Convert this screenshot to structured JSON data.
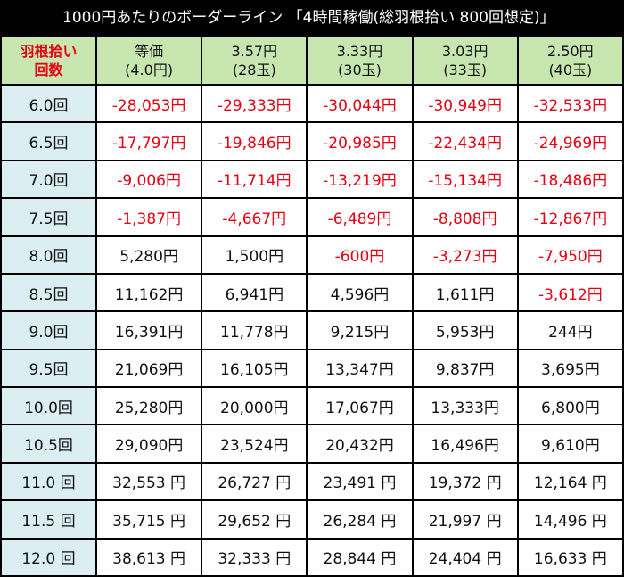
{
  "header": {
    "title": "1000円あたりのボーダーライン 「4時間稼働(総羽根拾い 800回想定)」"
  },
  "table": {
    "corner": [
      "羽根拾い",
      "回数"
    ],
    "columns": [
      [
        "等価",
        "(4.0円)"
      ],
      [
        "3.57円",
        "(28玉)"
      ],
      [
        "3.33円",
        "(30玉)"
      ],
      [
        "3.03円",
        "(33玉)"
      ],
      [
        "2.50円",
        "(40玉)"
      ]
    ],
    "negative_color": "#e60012",
    "rows": [
      [
        "6.0回",
        "-28,053円",
        "-29,333円",
        "-30,044円",
        "-30,949円",
        "-32,533円"
      ],
      [
        "6.5回",
        "-17,797円",
        "-19,846円",
        "-20,985円",
        "-22,434円",
        "-24,969円"
      ],
      [
        "7.0回",
        "-9,006円",
        "-11,714円",
        "-13,219円",
        "-15,134円",
        "-18,486円"
      ],
      [
        "7.5回",
        "-1,387円",
        "-4,667円",
        "-6,489円",
        "-8,808円",
        "-12,867円"
      ],
      [
        "8.0回",
        "5,280円",
        "1,500円",
        "-600円",
        "-3,273円",
        "-7,950円"
      ],
      [
        "8.5回",
        "11,162円",
        "6,941円",
        "4,596円",
        "1,611円",
        "-3,612円"
      ],
      [
        "9.0回",
        "16,391円",
        "11,778円",
        "9,215円",
        "5,953円",
        "244円"
      ],
      [
        "9.5回",
        "21,069円",
        "16,105円",
        "13,347円",
        "9,837円",
        "3,695円"
      ],
      [
        "10.0回",
        "25,280円",
        "20,000円",
        "17,067円",
        "13,333円",
        "6,800円"
      ],
      [
        "10.5回",
        "29,090円",
        "23,524円",
        "20,432円",
        "16,496円",
        "9,610円"
      ],
      [
        "11.0 回",
        "32,553 円",
        "26,727 円",
        "23,491 円",
        "19,372 円",
        "12,164 円"
      ],
      [
        "11.5 回",
        "35,715 円",
        "29,652 円",
        "26,284 円",
        "21,997 円",
        "14,496 円"
      ],
      [
        "12.0 回",
        "38,613 円",
        "32,333 円",
        "28,844 円",
        "24,404 円",
        "16,633 円"
      ]
    ]
  }
}
